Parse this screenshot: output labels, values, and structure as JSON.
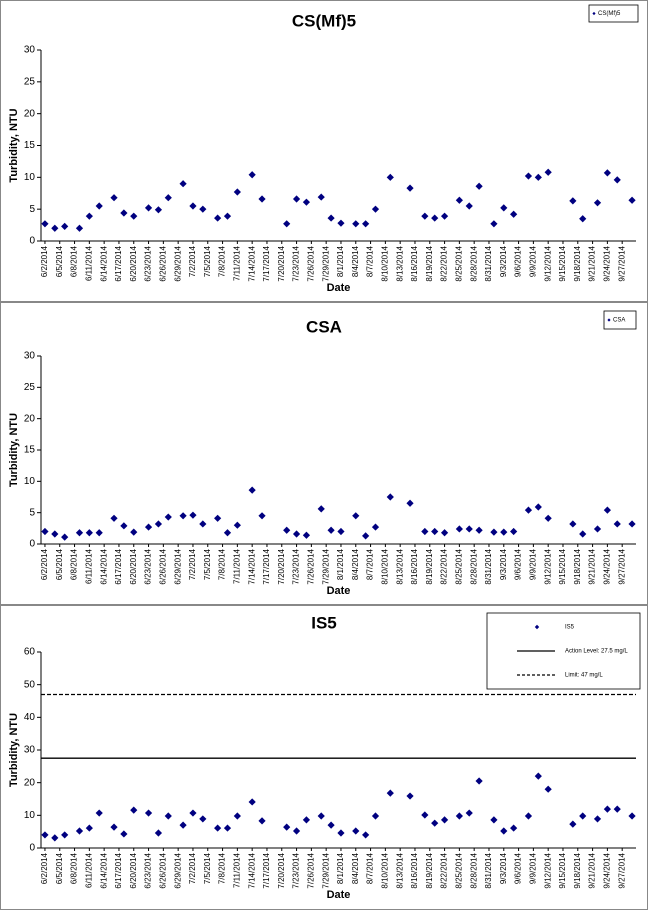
{
  "chart_data": [
    {
      "type": "scatter",
      "title": "CS(Mf)5",
      "xlabel": "Date",
      "ylabel": "Turbidity, NTU",
      "xticks": [
        "6/2/2014",
        "6/5/2014",
        "6/8/2014",
        "6/11/2014",
        "6/14/2014",
        "6/17/2014",
        "6/20/2014",
        "6/23/2014",
        "6/26/2014",
        "6/29/2014",
        "7/2/2014",
        "7/5/2014",
        "7/8/2014",
        "7/11/2014",
        "7/14/2014",
        "7/17/2014",
        "7/20/2014",
        "7/23/2014",
        "7/26/2014",
        "7/29/2014",
        "8/1/2014",
        "8/4/2014",
        "8/7/2014",
        "8/10/2014",
        "8/13/2014",
        "8/16/2014",
        "8/19/2014",
        "8/22/2014",
        "8/25/2014",
        "8/28/2014",
        "8/31/2014",
        "9/3/2014",
        "9/6/2014",
        "9/9/2014",
        "9/12/2014",
        "9/15/2014",
        "9/18/2014",
        "9/21/2014",
        "9/24/2014",
        "9/27/2014"
      ],
      "ylim": [
        0,
        30
      ],
      "yticks": [
        0,
        5,
        10,
        15,
        20,
        25,
        30
      ],
      "legend": "upper right",
      "series": [
        {
          "name": "CS(Mf)5",
          "color": "#000080",
          "x": [
            "6/2/2014",
            "6/4/2014",
            "6/6/2014",
            "6/9/2014",
            "6/11/2014",
            "6/13/2014",
            "6/16/2014",
            "6/18/2014",
            "6/20/2014",
            "6/23/2014",
            "6/25/2014",
            "6/27/2014",
            "6/30/2014",
            "7/2/2014",
            "7/4/2014",
            "7/7/2014",
            "7/9/2014",
            "7/11/2014",
            "7/14/2014",
            "7/16/2014",
            "7/21/2014",
            "7/23/2014",
            "7/25/2014",
            "7/28/2014",
            "7/30/2014",
            "8/1/2014",
            "8/4/2014",
            "8/6/2014",
            "8/8/2014",
            "8/11/2014",
            "8/15/2014",
            "8/18/2014",
            "8/20/2014",
            "8/22/2014",
            "8/25/2014",
            "8/27/2014",
            "8/29/2014",
            "9/1/2014",
            "9/3/2014",
            "9/5/2014",
            "9/8/2014",
            "9/10/2014",
            "9/12/2014",
            "9/17/2014",
            "9/19/2014",
            "9/22/2014",
            "9/24/2014",
            "9/26/2014",
            "9/29/2014"
          ],
          "values": [
            2.7,
            2.0,
            2.3,
            2.0,
            3.9,
            5.5,
            6.8,
            4.4,
            3.9,
            5.2,
            4.9,
            6.8,
            9.0,
            5.5,
            5.0,
            3.6,
            3.9,
            7.7,
            10.4,
            6.6,
            2.7,
            6.6,
            6.1,
            6.9,
            3.6,
            2.8,
            2.7,
            2.7,
            5.0,
            10.0,
            8.3,
            3.9,
            3.6,
            3.9,
            6.4,
            5.5,
            8.6,
            2.7,
            5.2,
            4.2,
            10.2,
            10.0,
            10.8,
            6.3,
            3.5,
            6.0,
            10.7,
            9.6,
            6.4
          ]
        }
      ]
    },
    {
      "type": "scatter",
      "title": "CSA",
      "xlabel": "Date",
      "ylabel": "Turbidity, NTU",
      "xticks": [
        "6/2/2014",
        "6/5/2014",
        "6/8/2014",
        "6/11/2014",
        "6/14/2014",
        "6/17/2014",
        "6/20/2014",
        "6/23/2014",
        "6/26/2014",
        "6/29/2014",
        "7/2/2014",
        "7/5/2014",
        "7/8/2014",
        "7/11/2014",
        "7/14/2014",
        "7/17/2014",
        "7/20/2014",
        "7/23/2014",
        "7/26/2014",
        "7/29/2014",
        "8/1/2014",
        "8/4/2014",
        "8/7/2014",
        "8/10/2014",
        "8/13/2014",
        "8/16/2014",
        "8/19/2014",
        "8/22/2014",
        "8/25/2014",
        "8/28/2014",
        "8/31/2014",
        "9/3/2014",
        "9/6/2014",
        "9/9/2014",
        "9/12/2014",
        "9/15/2014",
        "9/18/2014",
        "9/21/2014",
        "9/24/2014",
        "9/27/2014"
      ],
      "ylim": [
        0,
        30
      ],
      "yticks": [
        0,
        5,
        10,
        15,
        20,
        25,
        30
      ],
      "legend": "upper right",
      "series": [
        {
          "name": "CSA",
          "color": "#000080",
          "x": [
            "6/2/2014",
            "6/4/2014",
            "6/6/2014",
            "6/9/2014",
            "6/11/2014",
            "6/13/2014",
            "6/16/2014",
            "6/18/2014",
            "6/20/2014",
            "6/23/2014",
            "6/25/2014",
            "6/27/2014",
            "6/30/2014",
            "7/2/2014",
            "7/4/2014",
            "7/7/2014",
            "7/9/2014",
            "7/11/2014",
            "7/14/2014",
            "7/16/2014",
            "7/21/2014",
            "7/23/2014",
            "7/25/2014",
            "7/28/2014",
            "7/30/2014",
            "8/1/2014",
            "8/4/2014",
            "8/6/2014",
            "8/8/2014",
            "8/11/2014",
            "8/15/2014",
            "8/18/2014",
            "8/20/2014",
            "8/22/2014",
            "8/25/2014",
            "8/27/2014",
            "8/29/2014",
            "9/1/2014",
            "9/3/2014",
            "9/5/2014",
            "9/8/2014",
            "9/10/2014",
            "9/12/2014",
            "9/17/2014",
            "9/19/2014",
            "9/22/2014",
            "9/24/2014",
            "9/26/2014",
            "9/29/2014"
          ],
          "values": [
            2.0,
            1.6,
            1.1,
            1.8,
            1.8,
            1.8,
            4.1,
            2.9,
            1.9,
            2.7,
            3.2,
            4.3,
            4.5,
            4.6,
            3.2,
            4.1,
            1.8,
            3.0,
            8.6,
            4.5,
            2.2,
            1.6,
            1.4,
            5.6,
            2.2,
            2.0,
            4.5,
            1.3,
            2.7,
            7.5,
            6.5,
            2.0,
            2.0,
            1.8,
            2.4,
            2.4,
            2.2,
            1.9,
            1.9,
            2.0,
            5.4,
            5.9,
            4.1,
            3.2,
            1.6,
            2.4,
            5.4,
            3.2,
            3.2
          ]
        }
      ]
    },
    {
      "type": "scatter",
      "title": "IS5",
      "xlabel": "Date",
      "ylabel": "Turbidity, NTU",
      "xticks": [
        "6/2/2014",
        "6/5/2014",
        "6/8/2014",
        "6/11/2014",
        "6/14/2014",
        "6/17/2014",
        "6/20/2014",
        "6/23/2014",
        "6/26/2014",
        "6/29/2014",
        "7/2/2014",
        "7/5/2014",
        "7/8/2014",
        "7/11/2014",
        "7/14/2014",
        "7/17/2014",
        "7/20/2014",
        "7/23/2014",
        "7/26/2014",
        "7/29/2014",
        "8/1/2014",
        "8/4/2014",
        "8/7/2014",
        "8/10/2014",
        "8/13/2014",
        "8/16/2014",
        "8/19/2014",
        "8/22/2014",
        "8/25/2014",
        "8/28/2014",
        "8/31/2014",
        "9/3/2014",
        "9/6/2014",
        "9/9/2014",
        "9/12/2014",
        "9/15/2014",
        "9/18/2014",
        "9/21/2014",
        "9/24/2014",
        "9/27/2014"
      ],
      "ylim": [
        0,
        60
      ],
      "yticks": [
        0,
        10,
        20,
        30,
        40,
        50,
        60
      ],
      "legend": "upper right",
      "series": [
        {
          "name": "IS5",
          "color": "#000080",
          "x": [
            "6/2/2014",
            "6/4/2014",
            "6/6/2014",
            "6/9/2014",
            "6/11/2014",
            "6/13/2014",
            "6/16/2014",
            "6/18/2014",
            "6/20/2014",
            "6/23/2014",
            "6/25/2014",
            "6/27/2014",
            "6/30/2014",
            "7/2/2014",
            "7/4/2014",
            "7/7/2014",
            "7/9/2014",
            "7/11/2014",
            "7/14/2014",
            "7/16/2014",
            "7/21/2014",
            "7/23/2014",
            "7/25/2014",
            "7/28/2014",
            "7/30/2014",
            "8/1/2014",
            "8/4/2014",
            "8/6/2014",
            "8/8/2014",
            "8/11/2014",
            "8/15/2014",
            "8/18/2014",
            "8/20/2014",
            "8/22/2014",
            "8/25/2014",
            "8/27/2014",
            "8/29/2014",
            "9/1/2014",
            "9/3/2014",
            "9/5/2014",
            "9/8/2014",
            "9/10/2014",
            "9/12/2014",
            "9/17/2014",
            "9/19/2014",
            "9/22/2014",
            "9/24/2014",
            "9/26/2014",
            "9/29/2014"
          ],
          "values": [
            4.0,
            3.1,
            4.0,
            5.2,
            6.1,
            10.7,
            6.4,
            4.3,
            11.6,
            10.7,
            4.6,
            9.8,
            7.0,
            10.7,
            8.9,
            6.1,
            6.1,
            9.8,
            14.1,
            8.3,
            6.4,
            5.2,
            8.6,
            9.8,
            7.0,
            4.6,
            5.2,
            4.0,
            9.8,
            16.8,
            15.9,
            10.1,
            7.6,
            8.6,
            9.8,
            10.7,
            20.5,
            8.6,
            5.2,
            6.1,
            9.8,
            22.0,
            18.0,
            7.3,
            9.8,
            8.9,
            11.9,
            11.9,
            9.8
          ]
        }
      ],
      "hlines": [
        {
          "name": "Action Level: 27.5 mg/L",
          "value": 27.5,
          "color": "#000000",
          "style": "solid"
        },
        {
          "name": "Limit: 47 mg/L",
          "value": 47,
          "color": "#000000",
          "style": "dashed"
        }
      ]
    }
  ]
}
